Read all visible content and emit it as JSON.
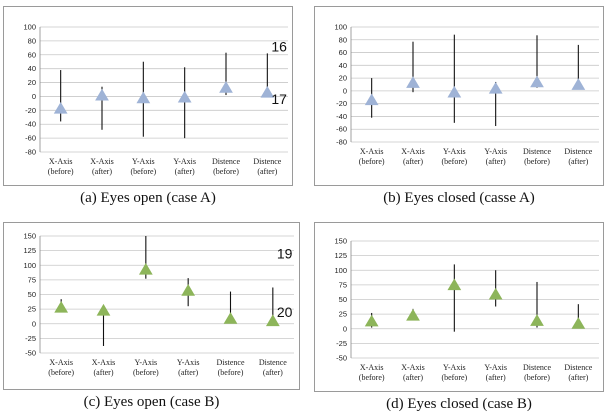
{
  "chart_data": [
    {
      "type": "error-bar",
      "caption": "(a) Eyes open (case A)",
      "categories": [
        "X-Axis\n(before)",
        "X-Axis\n(after)",
        "Y-Axis\n(before)",
        "Y-Axis\n(after)",
        "Distence\n(before)",
        "Distence\n(after)"
      ],
      "ylim": [
        -80,
        100
      ],
      "yticks": [
        100,
        80,
        60,
        40,
        20,
        0,
        -20,
        -40,
        -60,
        -80
      ],
      "values": [
        -18,
        1,
        -3,
        -2,
        12,
        5
      ],
      "upper": [
        38,
        14,
        50,
        42,
        63,
        62
      ],
      "lower": [
        -36,
        -48,
        -58,
        -60,
        2,
        2
      ],
      "marker_color": "#9fb3d6",
      "annotations": [
        {
          "text": "16",
          "x": 5,
          "y": 72
        },
        {
          "text": "17",
          "x": 5,
          "y": -4
        }
      ]
    },
    {
      "type": "error-bar",
      "caption": "(b) Eyes closed (casse A)",
      "categories": [
        "X-Axis\n(before)",
        "X-Axis\n(after)",
        "Y-Axis\n(before)",
        "Y-Axis\n(after)",
        "Distence\n(before)",
        "Distence\n(after)"
      ],
      "ylim": [
        -80,
        100
      ],
      "yticks": [
        100,
        80,
        60,
        40,
        20,
        0,
        -20,
        -40,
        -60,
        -80
      ],
      "values": [
        -15,
        12,
        -3,
        3,
        13,
        9
      ],
      "upper": [
        20,
        77,
        88,
        14,
        87,
        72
      ],
      "lower": [
        -42,
        -2,
        -50,
        -55,
        5,
        5
      ],
      "marker_color": "#9fb3d6",
      "annotations": []
    },
    {
      "type": "error-bar",
      "caption": "(c) Eyes open (case B)",
      "categories": [
        "X-Axis\n(before)",
        "X-Axis\n(after)",
        "Y-Axis\n(before)",
        "Y-Axis\n(after)",
        "Distence\n(before)",
        "Distence\n(after)"
      ],
      "ylim": [
        -50,
        150
      ],
      "yticks": [
        150,
        125,
        100,
        75,
        50,
        25,
        0,
        -25,
        -50
      ],
      "values": [
        27,
        22,
        92,
        56,
        8,
        4
      ],
      "upper": [
        42,
        27,
        150,
        78,
        55,
        62
      ],
      "lower": [
        20,
        -38,
        77,
        30,
        2,
        2
      ],
      "marker_color": "#8db55a",
      "annotations": [
        {
          "text": "19",
          "x": 5,
          "y": 120
        },
        {
          "text": "20",
          "x": 5,
          "y": 20
        }
      ]
    },
    {
      "type": "error-bar",
      "caption": "(d) Eyes closed (case B)",
      "categories": [
        "X-Axis\n(before)",
        "X-Axis\n(after)",
        "Y-Axis\n(before)",
        "Y-Axis\n(after)",
        "Distence\n(before)",
        "Distence\n(after)"
      ],
      "ylim": [
        -50,
        150
      ],
      "yticks": [
        150,
        125,
        100,
        75,
        50,
        25,
        0,
        -25,
        -50
      ],
      "values": [
        12,
        22,
        74,
        58,
        13,
        8
      ],
      "upper": [
        27,
        34,
        110,
        100,
        80,
        42
      ],
      "lower": [
        2,
        15,
        -5,
        38,
        2,
        2
      ],
      "marker_color": "#8db55a",
      "annotations": []
    }
  ]
}
